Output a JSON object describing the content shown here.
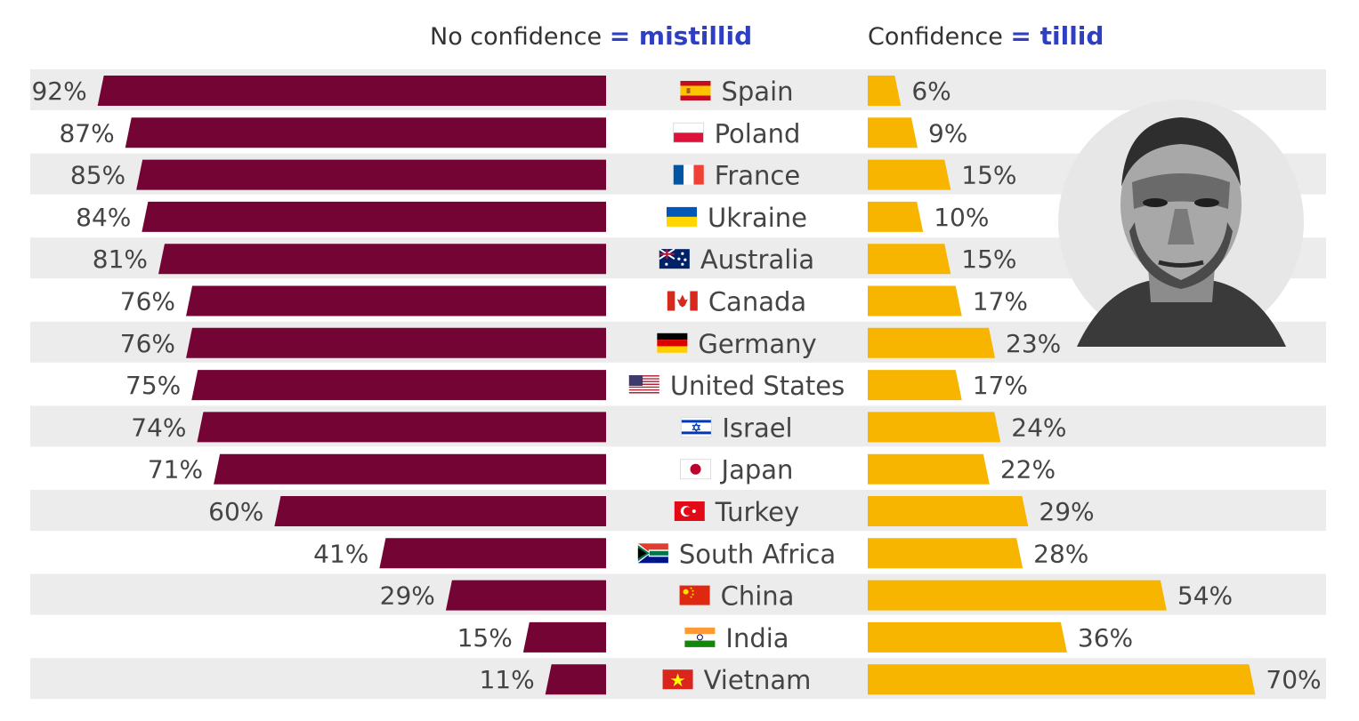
{
  "header": {
    "left_label": "No confidence",
    "left_annotation": "= mistillid",
    "right_label": "Confidence",
    "right_annotation": "= tillid"
  },
  "colors": {
    "no_confidence": "#730434",
    "confidence": "#f8b500",
    "row_stripe": "#ececec",
    "text": "#444444"
  },
  "chart_data": {
    "type": "bar",
    "orientation": "horizontal-diverging",
    "categories": [
      "Spain",
      "Poland",
      "France",
      "Ukraine",
      "Australia",
      "Canada",
      "Germany",
      "United States",
      "Israel",
      "Japan",
      "Turkey",
      "South Africa",
      "China",
      "India",
      "Vietnam"
    ],
    "category_icons": [
      "spain-flag-icon",
      "poland-flag-icon",
      "france-flag-icon",
      "ukraine-flag-icon",
      "australia-flag-icon",
      "canada-flag-icon",
      "germany-flag-icon",
      "united-states-flag-icon",
      "israel-flag-icon",
      "japan-flag-icon",
      "turkey-flag-icon",
      "south-africa-flag-icon",
      "china-flag-icon",
      "india-flag-icon",
      "vietnam-flag-icon"
    ],
    "series": [
      {
        "name": "No confidence",
        "values": [
          92,
          87,
          85,
          84,
          81,
          76,
          76,
          75,
          74,
          71,
          60,
          41,
          29,
          15,
          11
        ],
        "labels": [
          "92%",
          "87%",
          "85%",
          "84%",
          "81%",
          "76%",
          "76%",
          "75%",
          "74%",
          "71%",
          "60%",
          "41%",
          "29%",
          "15%",
          "11%"
        ]
      },
      {
        "name": "Confidence",
        "values": [
          6,
          9,
          15,
          10,
          15,
          17,
          23,
          17,
          24,
          22,
          29,
          28,
          54,
          36,
          70
        ],
        "labels": [
          "6%",
          "9%",
          "15%",
          "10%",
          "15%",
          "17%",
          "23%",
          "17%",
          "24%",
          "22%",
          "29%",
          "28%",
          "54%",
          "36%",
          "70%"
        ]
      }
    ],
    "unit": "%",
    "grid": false,
    "legend": "top"
  }
}
